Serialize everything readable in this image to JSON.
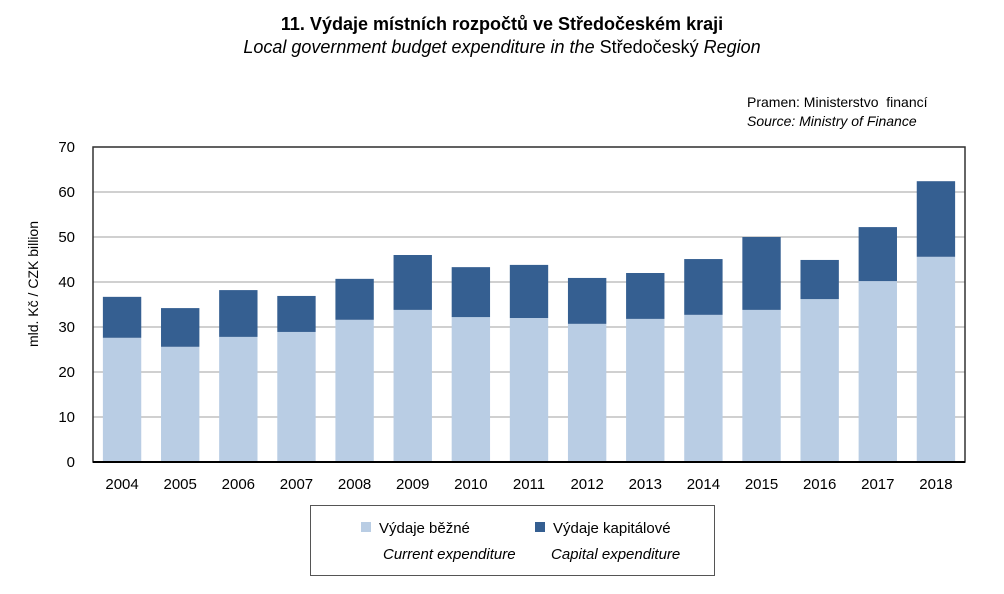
{
  "chart_data": {
    "type": "bar",
    "stacked": true,
    "title": "11. Výdaje místních rozpočtů ve Středočeském kraji",
    "subtitle_parts": [
      "Local government budget expenditure in the ",
      "Středočeský",
      " Region"
    ],
    "source_cz": "Pramen: Ministerstvo  financí",
    "source_en": "Source: Ministry of Finance",
    "ylabel": "mld. Kč / CZK billion",
    "xlabel": "",
    "ylim": [
      0,
      70
    ],
    "yticks": [
      0,
      10,
      20,
      30,
      40,
      50,
      60,
      70
    ],
    "grid": true,
    "legend_position": "bottom",
    "categories": [
      "2004",
      "2005",
      "2006",
      "2007",
      "2008",
      "2009",
      "2010",
      "2011",
      "2012",
      "2013",
      "2014",
      "2015",
      "2016",
      "2017",
      "2018"
    ],
    "series": [
      {
        "name": "Výdaje běžné",
        "name_en": "Current expenditure",
        "color": "#b9cde4",
        "values": [
          27.6,
          25.6,
          27.8,
          28.9,
          31.6,
          33.8,
          32.2,
          32.0,
          30.7,
          31.8,
          32.7,
          33.8,
          36.2,
          40.2,
          45.6
        ]
      },
      {
        "name": "Výdaje kapitálové",
        "name_en": "Capital expenditure",
        "color": "#355f91",
        "values": [
          9.1,
          8.6,
          10.4,
          8.0,
          9.1,
          12.2,
          11.1,
          11.8,
          10.2,
          10.2,
          12.4,
          16.2,
          8.7,
          12.0,
          16.8
        ]
      }
    ]
  }
}
